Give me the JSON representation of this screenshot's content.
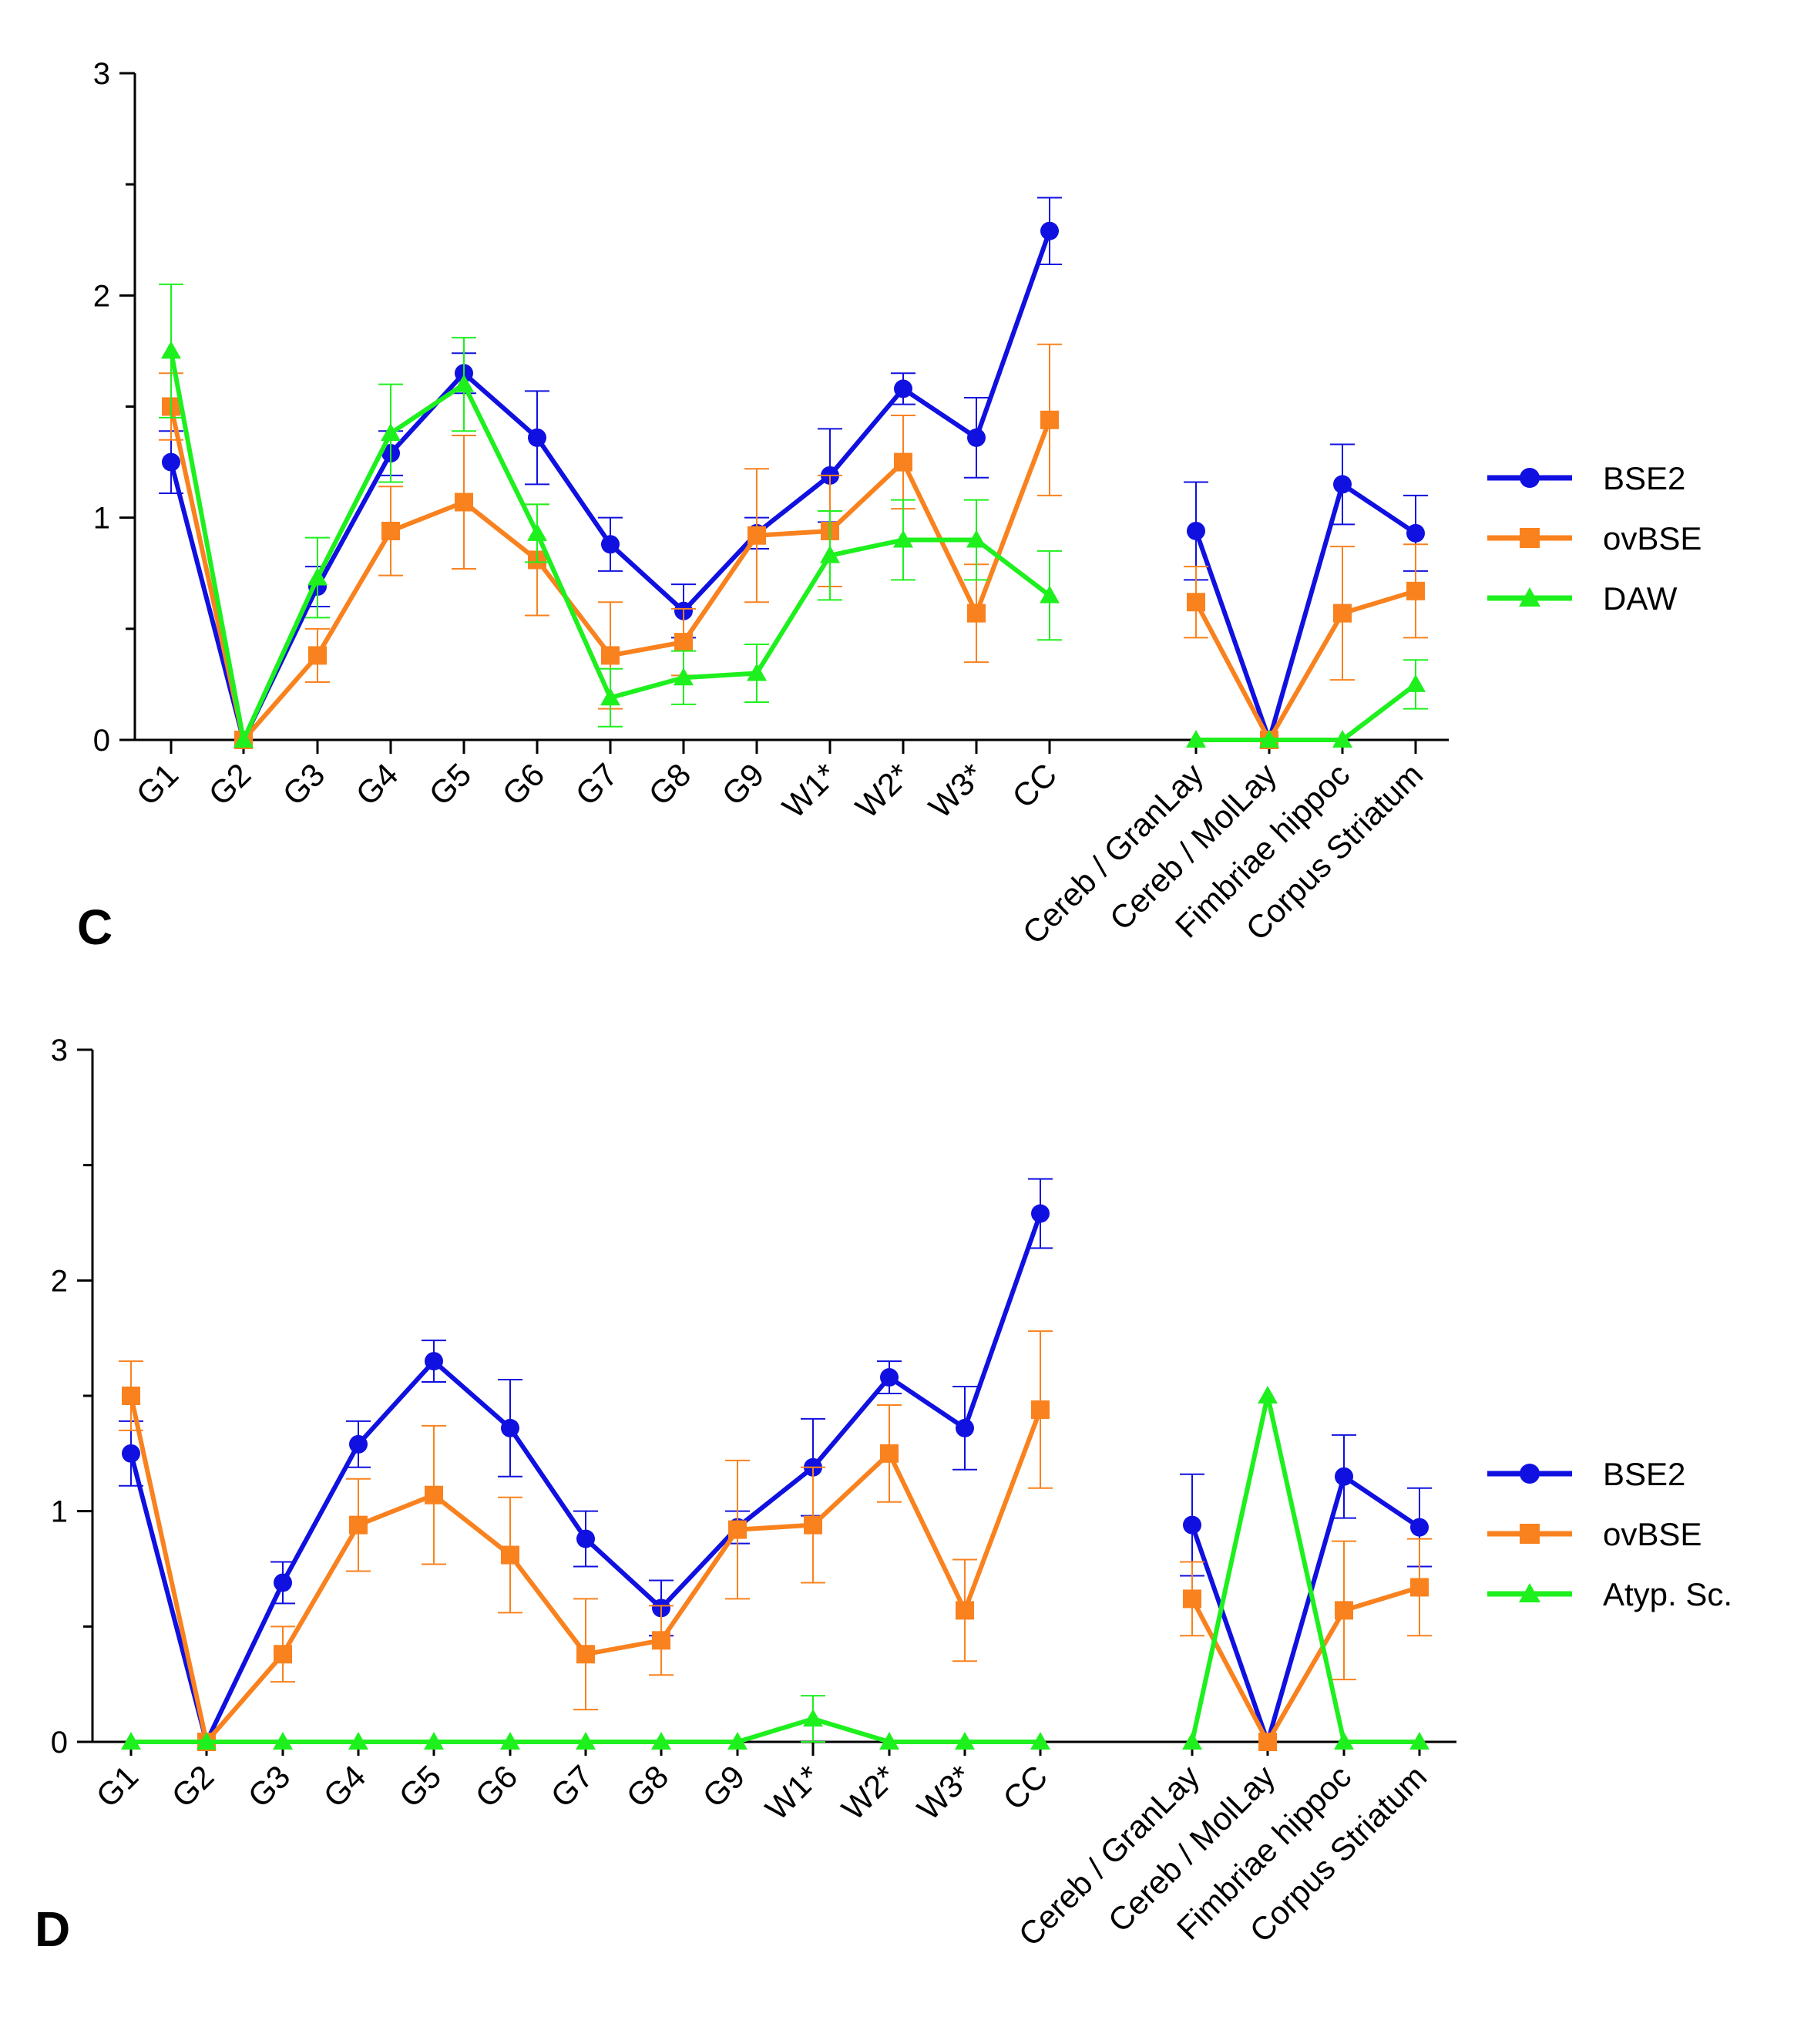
{
  "chart_data": [
    {
      "type": "line",
      "panel": "C",
      "ylim": [
        0,
        3
      ],
      "y_ticks": [
        "0",
        "1",
        "2",
        "3"
      ],
      "categories": [
        "G1",
        "G2",
        "G3",
        "G4",
        "G5",
        "G6",
        "G7",
        "G8",
        "G9",
        "W1*",
        "W2*",
        "W3*",
        "CC",
        "Cereb / GranLay",
        "Cereb / MolLay",
        "Fimbriae hippoc",
        "Corpus Striatum"
      ],
      "series": [
        {
          "name": "BSE2",
          "color": "#1010e0",
          "marker": "circle",
          "values": [
            1.25,
            0.0,
            0.69,
            1.29,
            1.65,
            1.36,
            0.88,
            0.58,
            0.93,
            1.19,
            1.58,
            1.36,
            2.29,
            0.94,
            0.0,
            1.15,
            0.93
          ],
          "errors": [
            0.14,
            0.0,
            0.09,
            0.1,
            0.09,
            0.21,
            0.12,
            0.12,
            0.07,
            0.21,
            0.07,
            0.18,
            0.15,
            0.22,
            0.0,
            0.18,
            0.17
          ]
        },
        {
          "name": "ovBSE",
          "color": "#f9821f",
          "marker": "square",
          "values": [
            1.5,
            0.0,
            0.38,
            0.94,
            1.07,
            0.81,
            0.38,
            0.44,
            0.92,
            0.94,
            1.25,
            0.57,
            1.44,
            0.62,
            0.0,
            0.57,
            0.67
          ],
          "errors": [
            0.15,
            0.0,
            0.12,
            0.2,
            0.3,
            0.25,
            0.24,
            0.15,
            0.3,
            0.25,
            0.21,
            0.22,
            0.34,
            0.16,
            0.0,
            0.3,
            0.21
          ]
        },
        {
          "name": "DAW",
          "color": "#1ef01e",
          "marker": "triangle",
          "values": [
            1.75,
            0.0,
            0.73,
            1.38,
            1.6,
            0.93,
            0.19,
            0.28,
            0.3,
            0.83,
            0.9,
            0.9,
            0.65,
            0.0,
            0.0,
            0.0,
            0.25
          ],
          "errors": [
            0.3,
            0.0,
            0.18,
            0.22,
            0.21,
            0.13,
            0.13,
            0.12,
            0.13,
            0.2,
            0.18,
            0.18,
            0.2,
            0.0,
            0.0,
            0.0,
            0.11
          ]
        }
      ]
    },
    {
      "type": "line",
      "panel": "D",
      "ylim": [
        0,
        3
      ],
      "y_ticks": [
        "0",
        "1",
        "2",
        "3"
      ],
      "categories": [
        "G1",
        "G2",
        "G3",
        "G4",
        "G5",
        "G6",
        "G7",
        "G8",
        "G9",
        "W1*",
        "W2*",
        "W3*",
        "CC",
        "Cereb / GranLay",
        "Cereb / MolLay",
        "Fimbriae hippoc",
        "Corpus Striatum"
      ],
      "series": [
        {
          "name": "BSE2",
          "color": "#1010e0",
          "marker": "circle",
          "values": [
            1.25,
            0.0,
            0.69,
            1.29,
            1.65,
            1.36,
            0.88,
            0.58,
            0.93,
            1.19,
            1.58,
            1.36,
            2.29,
            0.94,
            0.0,
            1.15,
            0.93
          ],
          "errors": [
            0.14,
            0.0,
            0.09,
            0.1,
            0.09,
            0.21,
            0.12,
            0.12,
            0.07,
            0.21,
            0.07,
            0.18,
            0.15,
            0.22,
            0.0,
            0.18,
            0.17
          ]
        },
        {
          "name": "ovBSE",
          "color": "#f9821f",
          "marker": "square",
          "values": [
            1.5,
            0.0,
            0.38,
            0.94,
            1.07,
            0.81,
            0.38,
            0.44,
            0.92,
            0.94,
            1.25,
            0.57,
            1.44,
            0.62,
            0.0,
            0.57,
            0.67
          ],
          "errors": [
            0.15,
            0.0,
            0.12,
            0.2,
            0.3,
            0.25,
            0.24,
            0.15,
            0.3,
            0.25,
            0.21,
            0.22,
            0.34,
            0.16,
            0.0,
            0.3,
            0.21
          ]
        },
        {
          "name": "Atyp. Sc.",
          "color": "#1ef01e",
          "marker": "triangle",
          "values": [
            0.0,
            0.0,
            0.0,
            0.0,
            0.0,
            0.0,
            0.0,
            0.0,
            0.0,
            0.1,
            0.0,
            0.0,
            0.0,
            0.0,
            1.5,
            0.0,
            0.0
          ],
          "errors": [
            0.0,
            0.0,
            0.0,
            0.0,
            0.0,
            0.0,
            0.0,
            0.0,
            0.0,
            0.1,
            0.0,
            0.0,
            0.0,
            0.0,
            0.0,
            0.0,
            0.0
          ]
        }
      ]
    }
  ]
}
